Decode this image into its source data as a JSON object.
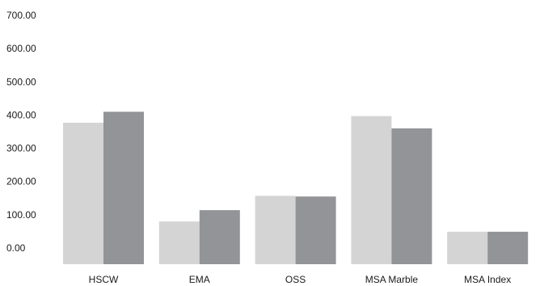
{
  "chart_data": {
    "type": "bar",
    "title": "",
    "xlabel": "",
    "ylabel": "",
    "ylim": [
      -10,
      700
    ],
    "y_ticks": [
      "700.00",
      "600.00",
      "500.00",
      "400.00",
      "300.00",
      "200.00",
      "100.00",
      "0.00"
    ],
    "y_tick_values": [
      700,
      600,
      500,
      400,
      300,
      200,
      100,
      0
    ],
    "categories": [
      "HSCW",
      "EMA",
      "OSS",
      "MSA Marble",
      "MSA Index"
    ],
    "series": [
      {
        "values": [
          377,
          80,
          157,
          397,
          49
        ],
        "color": "#d4d4d4"
      },
      {
        "values": [
          410,
          114,
          155,
          360,
          49
        ],
        "color": "#939497"
      }
    ],
    "grid": false,
    "legend": "none"
  }
}
